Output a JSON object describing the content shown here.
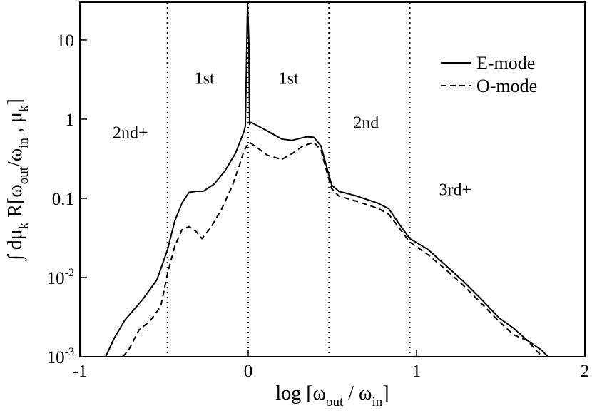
{
  "chart_data": {
    "type": "line",
    "xlabel": [
      {
        "text": "log [ω"
      },
      {
        "text": "out",
        "sub": true
      },
      {
        "text": " / ω"
      },
      {
        "text": "in",
        "sub": true
      },
      {
        "text": "]"
      }
    ],
    "ylabel": [
      {
        "text": "∫ dμ"
      },
      {
        "text": "k",
        "sub": true
      },
      {
        "text": " R[ω"
      },
      {
        "text": "out",
        "sub": true
      },
      {
        "text": "/ω"
      },
      {
        "text": "in",
        "sub": true
      },
      {
        "text": " , μ"
      },
      {
        "text": "k",
        "sub": true
      },
      {
        "text": "]"
      }
    ],
    "xlim": [
      -1,
      2
    ],
    "xticks": [
      -1,
      0,
      1,
      2
    ],
    "ylim": [
      0.001,
      30
    ],
    "log_y": true,
    "yticks": [
      {
        "value": 0.001,
        "label": "10",
        "sup": "-3"
      },
      {
        "value": 0.01,
        "label": "10",
        "sup": "-2"
      },
      0.1,
      1,
      10
    ],
    "vlines": [
      -0.48,
      0,
      0.48,
      0.96
    ],
    "annotations": [
      {
        "text": "2nd+",
        "x": -0.7,
        "y": 0.68
      },
      {
        "text": "1st",
        "x": -0.26,
        "y": 3.3
      },
      {
        "text": "1st",
        "x": 0.24,
        "y": 3.3
      },
      {
        "text": "2nd",
        "x": 0.7,
        "y": 0.91
      },
      {
        "text": "3rd+",
        "x": 1.23,
        "y": 0.13
      }
    ],
    "legend": "upper right",
    "series": [
      {
        "name": "E-mode",
        "color": "#000000",
        "dash": false,
        "x": [
          -0.847,
          -0.797,
          -0.733,
          -0.627,
          -0.542,
          -0.479,
          -0.436,
          -0.394,
          -0.352,
          -0.309,
          -0.267,
          -0.203,
          -0.14,
          -0.076,
          -0.025,
          -0.017,
          -0.008,
          -0.004,
          0.004,
          0.008,
          0.017,
          0.093,
          0.2,
          0.26,
          0.347,
          0.39,
          0.432,
          0.466,
          0.496,
          0.538,
          0.644,
          0.77,
          0.835,
          0.898,
          0.96,
          1.068,
          1.174,
          1.28,
          1.386,
          1.49,
          1.576,
          1.66,
          1.745,
          1.78
        ],
        "values": [
          0.001,
          0.0017,
          0.0029,
          0.0053,
          0.0094,
          0.0226,
          0.052,
          0.087,
          0.119,
          0.123,
          0.123,
          0.151,
          0.22,
          0.37,
          0.7,
          0.82,
          9.4,
          29,
          9.4,
          0.86,
          0.91,
          0.75,
          0.56,
          0.54,
          0.6,
          0.59,
          0.46,
          0.25,
          0.147,
          0.123,
          0.107,
          0.087,
          0.074,
          0.047,
          0.031,
          0.0226,
          0.0142,
          0.0089,
          0.0053,
          0.0031,
          0.0023,
          0.0016,
          0.0012,
          0.001
        ]
      },
      {
        "name": "O-mode",
        "color": "#000000",
        "dash": true,
        "x": [
          -0.746,
          -0.712,
          -0.648,
          -0.585,
          -0.52,
          -0.479,
          -0.436,
          -0.394,
          -0.352,
          -0.309,
          -0.275,
          -0.225,
          -0.161,
          -0.097,
          -0.055,
          -0.025,
          -0.008,
          0.008,
          0.051,
          0.114,
          0.2,
          0.263,
          0.326,
          0.39,
          0.432,
          0.466,
          0.496,
          0.538,
          0.644,
          0.77,
          0.835,
          0.898,
          0.96,
          1.068,
          1.174,
          1.28,
          1.386,
          1.49,
          1.576,
          1.66,
          1.71,
          1.75
        ],
        "values": [
          0.001,
          0.0012,
          0.0022,
          0.0028,
          0.0043,
          0.0113,
          0.025,
          0.04,
          0.044,
          0.038,
          0.031,
          0.042,
          0.071,
          0.14,
          0.25,
          0.4,
          0.46,
          0.51,
          0.44,
          0.35,
          0.31,
          0.37,
          0.46,
          0.51,
          0.41,
          0.22,
          0.133,
          0.107,
          0.092,
          0.075,
          0.063,
          0.042,
          0.028,
          0.0194,
          0.0126,
          0.0079,
          0.0047,
          0.0028,
          0.0019,
          0.0016,
          0.0012,
          0.001
        ]
      }
    ]
  }
}
